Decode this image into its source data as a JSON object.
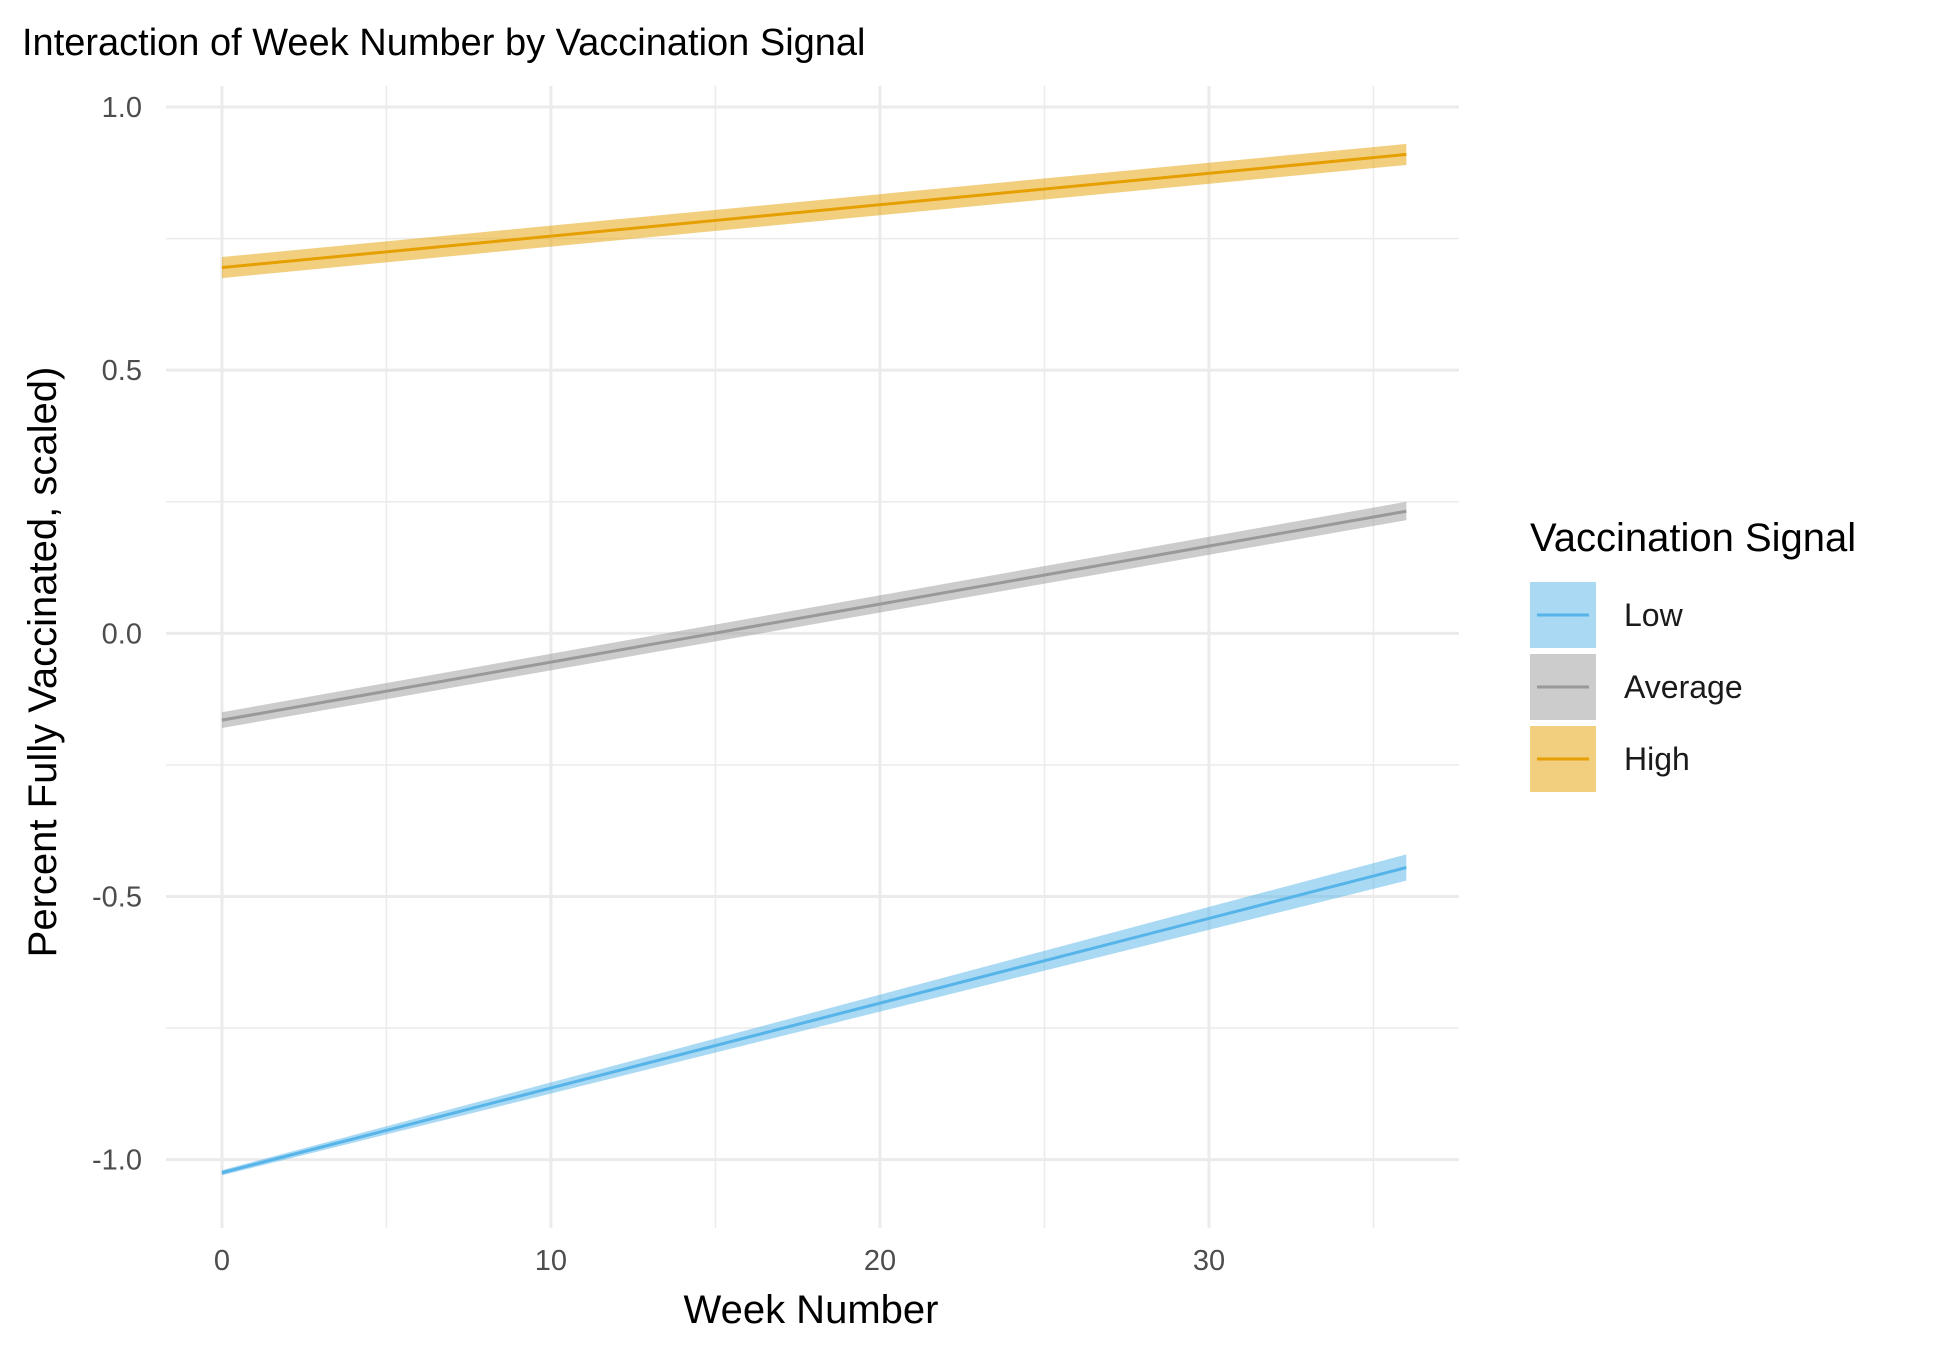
{
  "chart_data": {
    "type": "line",
    "title": "Interaction of Week Number by Vaccination Signal",
    "xlabel": "Week Number",
    "ylabel": "Percent Fully Vaccinated, scaled)",
    "xlim": [
      -1.7,
      37.6
    ],
    "ylim": [
      -1.13,
      1.04
    ],
    "x_ticks": [
      0,
      10,
      20,
      30
    ],
    "x_tick_labels": [
      "0",
      "10",
      "20",
      "30"
    ],
    "x_minor": [
      5,
      15,
      25,
      35
    ],
    "y_ticks": [
      -1.0,
      -0.5,
      0.0,
      0.5,
      1.0
    ],
    "y_tick_labels": [
      "-1.0",
      "-0.5",
      "0.0",
      "0.5",
      "1.0"
    ],
    "y_minor": [
      -0.75,
      -0.25,
      0.25,
      0.75
    ],
    "grid": true,
    "legend": {
      "title": "Vaccination Signal",
      "position": "right"
    },
    "series": [
      {
        "name": "Low",
        "color": "#56B4E9",
        "fill": "#56B4E9",
        "x": [
          0,
          36
        ],
        "y": [
          -1.025,
          -0.445
        ],
        "ci_lower": [
          -1.03,
          -0.47
        ],
        "ci_upper": [
          -1.02,
          -0.42
        ]
      },
      {
        "name": "Average",
        "color": "#999999",
        "fill": "#999999",
        "x": [
          0,
          36
        ],
        "y": [
          -0.165,
          0.232
        ],
        "ci_lower": [
          -0.18,
          0.215
        ],
        "ci_upper": [
          -0.15,
          0.25
        ]
      },
      {
        "name": "High",
        "color": "#E69F00",
        "fill": "#E69F00",
        "x": [
          0,
          36
        ],
        "y": [
          0.695,
          0.91
        ],
        "ci_lower": [
          0.675,
          0.89
        ],
        "ci_upper": [
          0.715,
          0.93
        ]
      }
    ]
  }
}
